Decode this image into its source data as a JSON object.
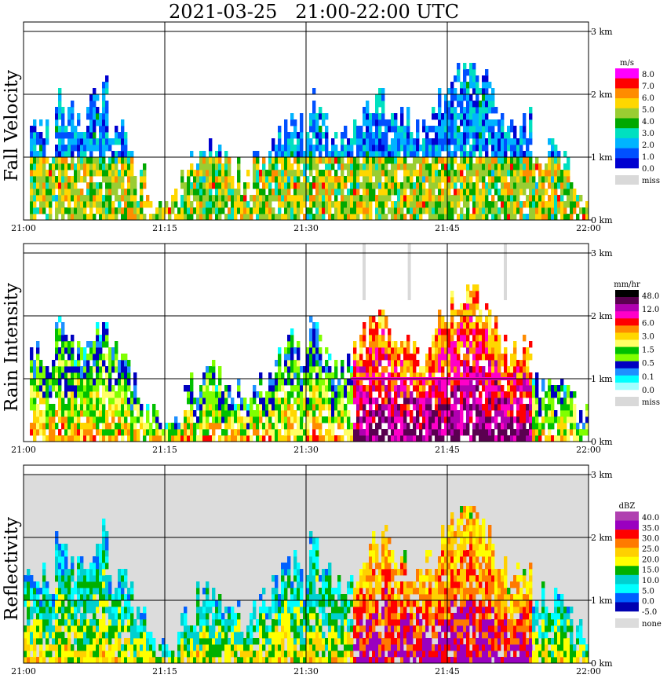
{
  "title": "2021-03-25   21:00-22:00 UTC",
  "chart_data": [
    {
      "type": "heatmap",
      "title": "Fall Velocity",
      "x_ticks": [
        "21:00",
        "21:15",
        "21:30",
        "21:45",
        "22:00"
      ],
      "y_ticks": [
        "0 km",
        "1 km",
        "2 km",
        "3 km"
      ],
      "ylim_km": [
        0,
        3.0
      ],
      "grid": true,
      "background": "#ffffff",
      "legend": {
        "unit": "m/s",
        "placement": "right",
        "labels": [
          "8.0",
          "7.0",
          "6.0",
          "5.0",
          "4.0",
          "3.0",
          "2.0",
          "1.0",
          "0.0"
        ],
        "colors": [
          "#ff00ff",
          "#ff0000",
          "#ff8c00",
          "#ffd700",
          "#9acd32",
          "#00a800",
          "#00e0c0",
          "#00b4ff",
          "#0050ff",
          "#0000d0"
        ],
        "missing_label": "miss",
        "missing_color": "#d9d9d9"
      }
    },
    {
      "type": "heatmap",
      "title": "Rain Intensity",
      "x_ticks": [
        "21:00",
        "21:15",
        "21:30",
        "21:45",
        "22:00"
      ],
      "y_ticks": [
        "0 km",
        "1 km",
        "2 km",
        "3 km"
      ],
      "ylim_km": [
        0,
        3.0
      ],
      "grid": true,
      "background": "#ffffff",
      "legend": {
        "unit": "mm/hr",
        "placement": "right",
        "labels": [
          "48.0",
          "12.0",
          "6.0",
          "3.0",
          "1.5",
          "0.5",
          "0.1",
          "0.0"
        ],
        "colors": [
          "#000000",
          "#5a0050",
          "#b000b0",
          "#ff00c8",
          "#ff0000",
          "#ff8c00",
          "#ffd700",
          "#ffff66",
          "#00c000",
          "#80ff00",
          "#0000c0",
          "#1e90ff",
          "#00ffff",
          "#a0ffff"
        ],
        "missing_label": "miss",
        "missing_color": "#d9d9d9"
      }
    },
    {
      "type": "heatmap",
      "title": "Reflectivity",
      "x_ticks": [
        "21:00",
        "21:15",
        "21:30",
        "21:45",
        "22:00"
      ],
      "y_ticks": [
        "0 km",
        "1 km",
        "2 km",
        "3 km"
      ],
      "ylim_km": [
        0,
        3.0
      ],
      "grid": true,
      "background": "#dcdcdc",
      "legend": {
        "unit": "dBZ",
        "placement": "right",
        "labels": [
          "40.0",
          "35.0",
          "30.0",
          "25.0",
          "20.0",
          "15.0",
          "10.0",
          "5.0",
          "0.0",
          "-5.0"
        ],
        "colors": [
          "#b040b0",
          "#9a00c0",
          "#ff0000",
          "#ff7a00",
          "#ffd000",
          "#ffff00",
          "#00b000",
          "#00d0d0",
          "#00ffff",
          "#0060ff",
          "#0000b0"
        ],
        "missing_label": "none",
        "missing_color": "#dcdcdc"
      }
    }
  ]
}
